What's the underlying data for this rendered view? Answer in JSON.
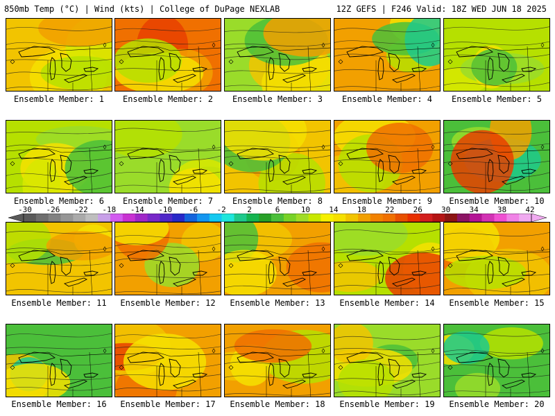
{
  "header": {
    "left": "850mb Temp (°C) | Wind (kts) | College of DuPage NEXLAB",
    "right": "12Z GEFS | F246 Valid: 18Z WED JUN 18 2025"
  },
  "panels": [
    {
      "label": "Ensemble Member: 1",
      "palette": [
        "#f2c400",
        "#f6e000",
        "#d8e800",
        "#b6e000",
        "#f2a000"
      ]
    },
    {
      "label": "Ensemble Member: 2",
      "palette": [
        "#f07000",
        "#e84000",
        "#f2a000",
        "#f6e000",
        "#b6e000"
      ]
    },
    {
      "label": "Ensemble Member: 3",
      "palette": [
        "#9adc2a",
        "#f2c400",
        "#f6e000",
        "#4bbf3a",
        "#f2a000"
      ]
    },
    {
      "label": "Ensemble Member: 4",
      "palette": [
        "#f2a000",
        "#f6e000",
        "#b6e000",
        "#4bbf3a",
        "#1ec98c"
      ]
    },
    {
      "label": "Ensemble Member: 5",
      "palette": [
        "#b6e000",
        "#d8e800",
        "#9adc2a",
        "#f6e000",
        "#4bbf3a"
      ]
    },
    {
      "label": "Ensemble Member: 6",
      "palette": [
        "#b6e000",
        "#9adc2a",
        "#f6e000",
        "#d8e800",
        "#4bbf3a"
      ]
    },
    {
      "label": "Ensemble Member: 7",
      "palette": [
        "#9adc2a",
        "#b6e000",
        "#4bbf3a",
        "#d8e800",
        "#f6e000"
      ]
    },
    {
      "label": "Ensemble Member: 8",
      "palette": [
        "#f2c400",
        "#f2a000",
        "#b6e000",
        "#4bbf3a",
        "#f6e000"
      ]
    },
    {
      "label": "Ensemble Member: 9",
      "palette": [
        "#f2a000",
        "#f2c400",
        "#f6e000",
        "#b6e000",
        "#f07000"
      ]
    },
    {
      "label": "Ensemble Member: 10",
      "palette": [
        "#4bbf3a",
        "#9adc2a",
        "#1ec98c",
        "#f2a000",
        "#e84000"
      ]
    },
    {
      "label": "Ensemble Member: 11",
      "palette": [
        "#f2c400",
        "#4bbf3a",
        "#b6e000",
        "#f6e000",
        "#f2a000"
      ]
    },
    {
      "label": "Ensemble Member: 12",
      "palette": [
        "#f2a000",
        "#f2c400",
        "#9adc2a",
        "#f07000",
        "#f6e000"
      ]
    },
    {
      "label": "Ensemble Member: 13",
      "palette": [
        "#f2a000",
        "#f2c400",
        "#4bbf3a",
        "#f6e000",
        "#f07000"
      ]
    },
    {
      "label": "Ensemble Member: 14",
      "palette": [
        "#b6e000",
        "#9adc2a",
        "#f6e000",
        "#f2c400",
        "#e84000"
      ]
    },
    {
      "label": "Ensemble Member: 15",
      "palette": [
        "#f2a000",
        "#f07000",
        "#f2c400",
        "#f6e000",
        "#b6e000"
      ]
    },
    {
      "label": "Ensemble Member: 16",
      "palette": [
        "#4bbf3a",
        "#9adc2a",
        "#f2c400",
        "#1ec98c",
        "#f6e000"
      ]
    },
    {
      "label": "Ensemble Member: 17",
      "palette": [
        "#f2a000",
        "#f07000",
        "#f2c400",
        "#e84000",
        "#f6e000"
      ]
    },
    {
      "label": "Ensemble Member: 18",
      "palette": [
        "#f2a000",
        "#f2c400",
        "#b6e000",
        "#f6e000",
        "#f07000"
      ]
    },
    {
      "label": "Ensemble Member: 19",
      "palette": [
        "#9adc2a",
        "#4bbf3a",
        "#f6e000",
        "#f2c400",
        "#b6e000"
      ]
    },
    {
      "label": "Ensemble Member: 20",
      "palette": [
        "#4bbf3a",
        "#9adc2a",
        "#b6e000",
        "#f6e000",
        "#1ec98c"
      ]
    }
  ],
  "colorbar": {
    "tick_labels": [
      "-30",
      "-26",
      "-22",
      "-18",
      "-14",
      "-10",
      "-6",
      "-2",
      "2",
      "6",
      "10",
      "14",
      "18",
      "22",
      "26",
      "30",
      "34",
      "38",
      "42"
    ],
    "colors": [
      "#5a5a5a",
      "#6e6e6e",
      "#828282",
      "#969696",
      "#aaaaaa",
      "#bebebe",
      "#c8a0e8",
      "#d25af0",
      "#c832d2",
      "#a028c8",
      "#7828c8",
      "#5028c8",
      "#2828c8",
      "#1464dc",
      "#1496f0",
      "#14c8f0",
      "#1ee6dc",
      "#1ec98c",
      "#14b450",
      "#28a028",
      "#4bbf3a",
      "#78d228",
      "#a0dc28",
      "#c8e800",
      "#f6f000",
      "#f6e000",
      "#f2c400",
      "#f2a000",
      "#f28200",
      "#f07000",
      "#e85000",
      "#e83000",
      "#d21e1e",
      "#b41414",
      "#8c1414",
      "#8c1464",
      "#b41496",
      "#d232b4",
      "#f050d2",
      "#f082e6",
      "#f0aaf0"
    ]
  }
}
